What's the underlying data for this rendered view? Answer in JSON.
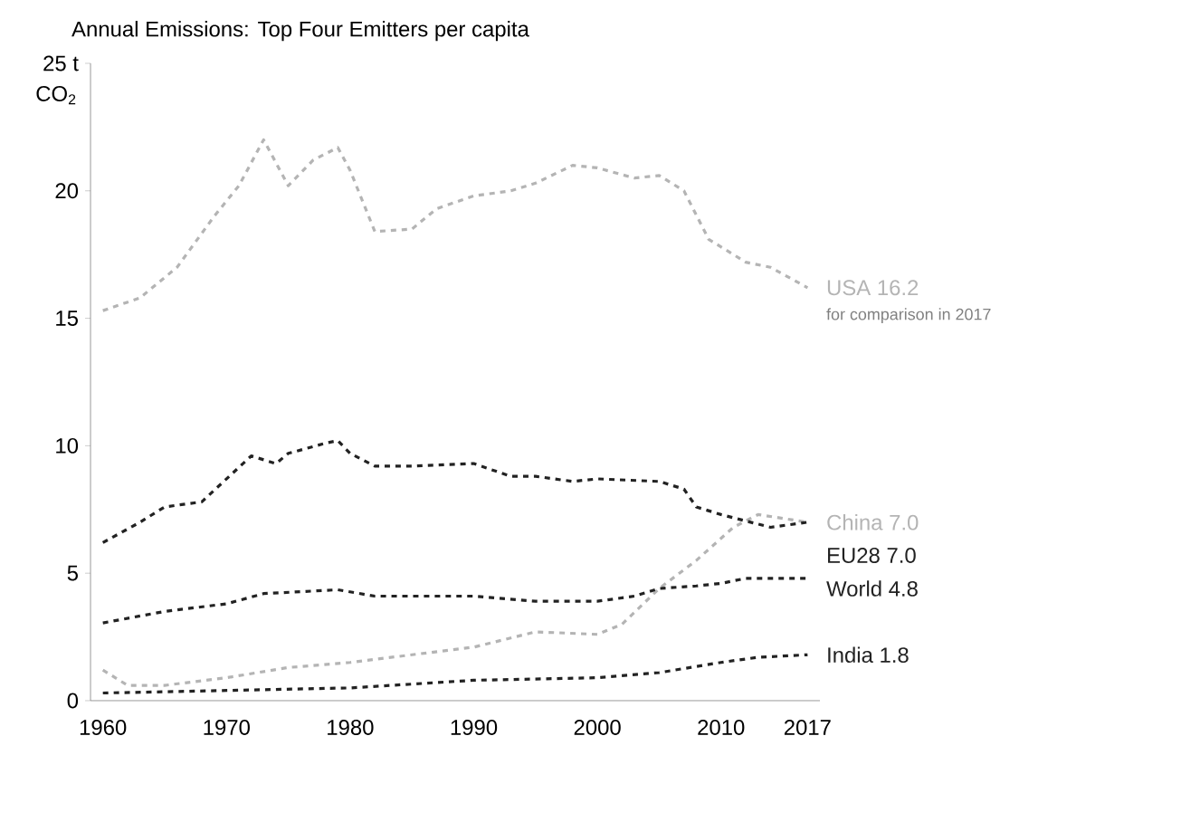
{
  "chart_data": {
    "type": "line",
    "title": "Annual Emissions: Top Four Emitters per capita",
    "ylabel": "CO$_{2}$",
    "annotations": [
      "for comparison in 2017"
    ],
    "xlim": [
      1959,
      2018
    ],
    "ylim": [
      0,
      25
    ],
    "xticks": [
      1960,
      1970,
      1980,
      1990,
      2000,
      2010,
      2017
    ],
    "yticks": [
      0,
      5,
      10,
      15,
      20,
      {
        "value": 25,
        "label": "25 t"
      }
    ],
    "grid": false,
    "line_style": "dashed",
    "series": [
      {
        "name": "USA 16.2",
        "color": "#b4b4b4",
        "x": [
          1960,
          1963,
          1966,
          1969,
          1971,
          1973,
          1975,
          1977,
          1979,
          1980,
          1982,
          1985,
          1987,
          1990,
          1993,
          1995,
          1998,
          2000,
          2003,
          2005,
          2007,
          2009,
          2012,
          2014,
          2017
        ],
        "values": [
          15.3,
          15.8,
          17.0,
          19.0,
          20.2,
          22.0,
          20.2,
          21.2,
          21.7,
          20.8,
          18.4,
          18.5,
          19.3,
          19.8,
          20.0,
          20.3,
          21.0,
          20.9,
          20.5,
          20.6,
          20.0,
          18.1,
          17.2,
          17.0,
          16.2
        ]
      },
      {
        "name": "China 7.0",
        "color": "#b4b4b4",
        "x": [
          1960,
          1962,
          1965,
          1970,
          1975,
          1980,
          1985,
          1990,
          1995,
          2000,
          2002,
          2005,
          2008,
          2011,
          2013,
          2017
        ],
        "values": [
          1.2,
          0.6,
          0.6,
          0.9,
          1.3,
          1.5,
          1.8,
          2.1,
          2.7,
          2.6,
          3.0,
          4.4,
          5.5,
          6.8,
          7.3,
          7.0
        ]
      },
      {
        "name": "EU28 7.0",
        "color": "#222222",
        "x": [
          1960,
          1963,
          1965,
          1968,
          1970,
          1972,
          1974,
          1975,
          1978,
          1979,
          1980,
          1982,
          1985,
          1990,
          1993,
          1995,
          1998,
          2000,
          2005,
          2007,
          2008,
          2010,
          2014,
          2017
        ],
        "values": [
          6.2,
          7.0,
          7.6,
          7.8,
          8.7,
          9.6,
          9.3,
          9.7,
          10.1,
          10.2,
          9.7,
          9.2,
          9.2,
          9.3,
          8.8,
          8.8,
          8.6,
          8.7,
          8.6,
          8.3,
          7.6,
          7.3,
          6.8,
          7.0
        ]
      },
      {
        "name": "World 4.8",
        "color": "#222222",
        "x": [
          1960,
          1965,
          1970,
          1973,
          1979,
          1982,
          1990,
          1995,
          2000,
          2003,
          2005,
          2008,
          2010,
          2012,
          2017
        ],
        "values": [
          3.05,
          3.5,
          3.8,
          4.2,
          4.35,
          4.1,
          4.1,
          3.9,
          3.9,
          4.1,
          4.4,
          4.5,
          4.6,
          4.8,
          4.8
        ]
      },
      {
        "name": "India 1.8",
        "color": "#222222",
        "x": [
          1960,
          1970,
          1980,
          1990,
          2000,
          2005,
          2010,
          2013,
          2017
        ],
        "values": [
          0.3,
          0.4,
          0.5,
          0.8,
          0.9,
          1.1,
          1.5,
          1.7,
          1.8
        ]
      }
    ]
  }
}
